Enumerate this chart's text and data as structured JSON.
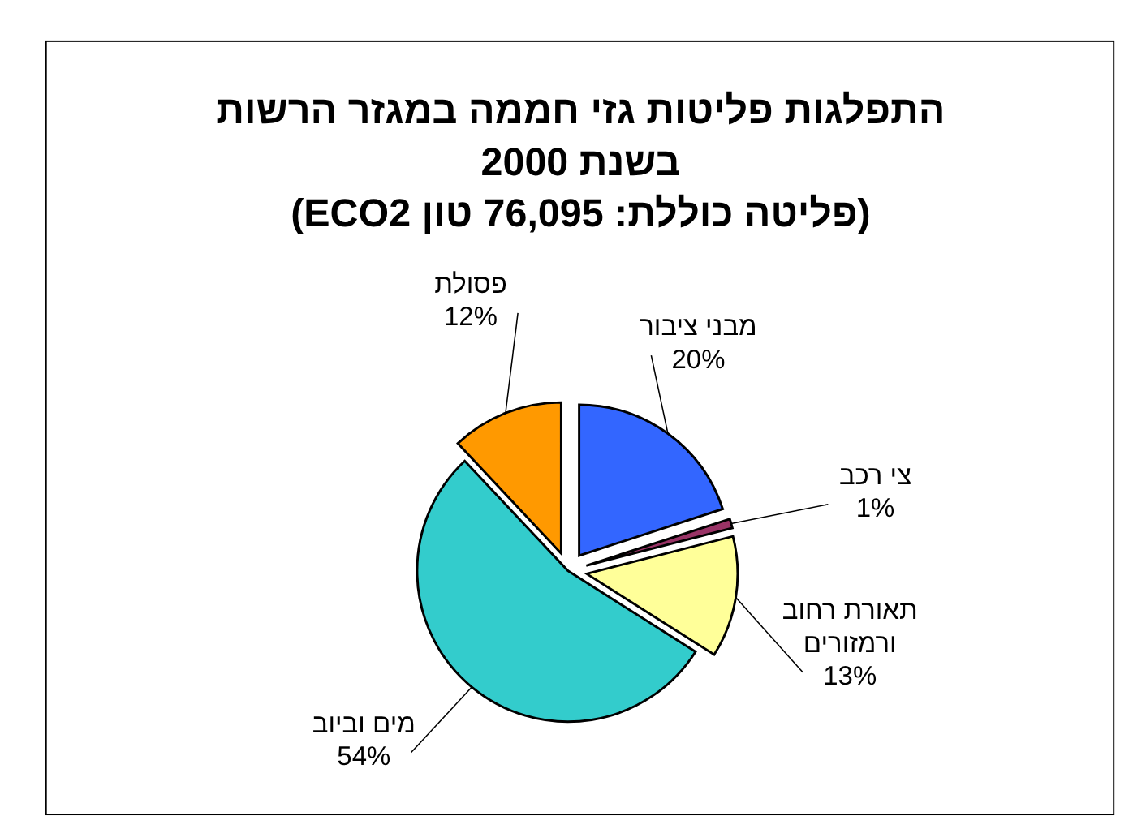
{
  "chart_data": {
    "type": "pie",
    "title": "התפלגות פליטות גזי חממה במגזר הרשות בשנת 2000",
    "subtitle": "(פליטה כוללת: 76,095 טון ECO2)",
    "categories": [
      "מבני ציבור",
      "צי רכב",
      "תאורת רחוב ורמזורים",
      "מים וביוב",
      "פסולת"
    ],
    "values": [
      20,
      1,
      13,
      54,
      12
    ],
    "colors": [
      "#3366ff",
      "#993366",
      "#ffff99",
      "#33cccc",
      "#ff9900"
    ],
    "value_labels": [
      "20%",
      "1%",
      "13%",
      "54%",
      "12%"
    ]
  }
}
